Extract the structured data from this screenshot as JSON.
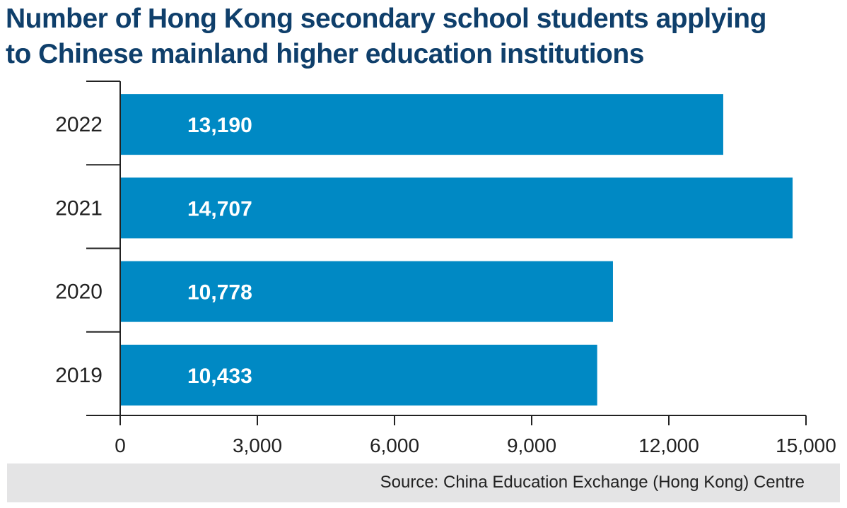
{
  "title_lines": [
    "Number of Hong Kong secondary school students applying",
    "to Chinese mainland higher education institutions"
  ],
  "source": "Source: China Education Exchange (Hong Kong) Centre",
  "colors": {
    "bar": "#0089c4",
    "title": "#0f3f6b",
    "source_bg": "#e4e4e5"
  },
  "chart_data": {
    "type": "bar",
    "orientation": "horizontal",
    "title": "Number of Hong Kong secondary school students applying to Chinese mainland higher education institutions",
    "categories": [
      "2022",
      "2021",
      "2020",
      "2019"
    ],
    "values": [
      13190,
      14707,
      10778,
      10433
    ],
    "value_labels": [
      "13,190",
      "14,707",
      "10,778",
      "10,433"
    ],
    "x_ticks": [
      0,
      3000,
      6000,
      9000,
      12000,
      15000
    ],
    "x_tick_labels": [
      "0",
      "3,000",
      "6,000",
      "9,000",
      "12,000",
      "15,000"
    ],
    "xlim": [
      0,
      15000
    ],
    "grid": false,
    "legend": "none"
  }
}
